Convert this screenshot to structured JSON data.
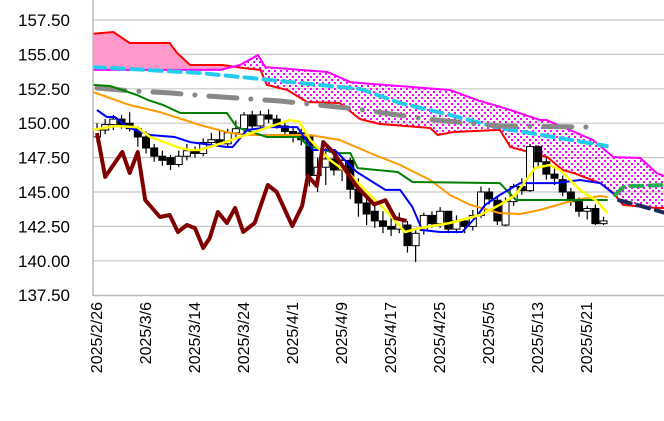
{
  "chart_data": {
    "type": "candlestick-ichimoku",
    "title": "",
    "ylim": [
      137.5,
      157.5
    ],
    "xlim": [
      -0.5,
      69.4
    ],
    "grid": true,
    "y_ticks": [
      "137.50",
      "140.00",
      "142.50",
      "145.00",
      "147.50",
      "150.00",
      "152.50",
      "155.00",
      "157.50"
    ],
    "y_tick_values": [
      137.5,
      140,
      142.5,
      145,
      147.5,
      150,
      152.5,
      155,
      157.5
    ],
    "x_ticks": [
      {
        "index": 0,
        "label": "2025/2/26"
      },
      {
        "index": 6,
        "label": "2025/3/6"
      },
      {
        "index": 12,
        "label": "2025/3/14"
      },
      {
        "index": 18,
        "label": "2025/3/24"
      },
      {
        "index": 24,
        "label": "2025/4/1"
      },
      {
        "index": 30,
        "label": "2025/4/9"
      },
      {
        "index": 36,
        "label": "2025/4/17"
      },
      {
        "index": 42,
        "label": "2025/4/25"
      },
      {
        "index": 48,
        "label": "2025/5/5"
      },
      {
        "index": 54,
        "label": "2025/5/13"
      },
      {
        "index": 60,
        "label": "2025/5/21"
      }
    ],
    "candles_ohlc": [
      [
        149.0,
        150.0,
        148.6,
        149.5
      ],
      [
        149.5,
        150.3,
        149.2,
        149.9
      ],
      [
        149.9,
        150.6,
        149.5,
        150.3
      ],
      [
        150.3,
        150.6,
        149.6,
        149.8
      ],
      [
        150.0,
        150.8,
        149.4,
        149.6
      ],
      [
        149.6,
        149.8,
        148.3,
        149.0
      ],
      [
        149.0,
        149.4,
        147.8,
        148.2
      ],
      [
        148.2,
        148.5,
        147.2,
        147.6
      ],
      [
        147.6,
        148.0,
        146.9,
        147.3
      ],
      [
        147.5,
        147.7,
        146.6,
        147.0
      ],
      [
        147.0,
        148.0,
        146.8,
        147.6
      ],
      [
        147.6,
        148.5,
        147.3,
        148.0
      ],
      [
        148.0,
        148.3,
        147.5,
        147.8
      ],
      [
        147.8,
        148.9,
        147.6,
        148.6
      ],
      [
        148.6,
        149.3,
        148.2,
        148.8
      ],
      [
        148.8,
        149.5,
        148.3,
        148.5
      ],
      [
        148.5,
        149.6,
        148.2,
        149.3
      ],
      [
        149.3,
        150.2,
        149.0,
        149.6
      ],
      [
        149.6,
        150.8,
        149.3,
        150.6
      ],
      [
        150.6,
        150.9,
        149.5,
        149.8
      ],
      [
        149.8,
        150.9,
        149.6,
        150.6
      ],
      [
        150.6,
        151.0,
        150.0,
        150.3
      ],
      [
        150.3,
        150.6,
        149.6,
        149.8
      ],
      [
        149.8,
        150.2,
        149.0,
        149.4
      ],
      [
        149.4,
        149.8,
        148.6,
        149.0
      ],
      [
        149.3,
        149.6,
        148.4,
        148.8
      ],
      [
        149.0,
        149.2,
        145.4,
        146.2
      ],
      [
        146.2,
        147.5,
        145.0,
        146.8
      ],
      [
        146.8,
        148.2,
        145.5,
        147.4
      ],
      [
        147.4,
        147.8,
        146.2,
        146.6
      ],
      [
        146.6,
        147.6,
        145.8,
        147.3
      ],
      [
        147.3,
        147.5,
        144.5,
        145.2
      ],
      [
        145.2,
        146.0,
        143.2,
        144.2
      ],
      [
        144.2,
        144.6,
        142.6,
        143.4
      ],
      [
        143.6,
        144.2,
        142.4,
        142.9
      ],
      [
        142.9,
        143.6,
        142.0,
        142.5
      ],
      [
        142.5,
        143.2,
        141.8,
        142.3
      ],
      [
        142.3,
        143.5,
        142.0,
        143.0
      ],
      [
        142.6,
        142.9,
        140.6,
        141.1
      ],
      [
        141.1,
        142.3,
        139.9,
        142.0
      ],
      [
        142.2,
        143.5,
        141.9,
        143.3
      ],
      [
        143.3,
        143.6,
        142.4,
        142.7
      ],
      [
        142.7,
        143.9,
        142.4,
        143.6
      ],
      [
        143.6,
        143.6,
        142.0,
        142.3
      ],
      [
        142.3,
        143.3,
        142.0,
        142.9
      ],
      [
        142.9,
        143.0,
        142.0,
        142.5
      ],
      [
        142.5,
        143.7,
        142.2,
        143.3
      ],
      [
        143.3,
        145.4,
        143.1,
        145.0
      ],
      [
        145.0,
        145.3,
        144.1,
        144.5
      ],
      [
        144.4,
        144.6,
        142.6,
        142.9
      ],
      [
        142.6,
        144.6,
        142.5,
        144.3
      ],
      [
        144.3,
        145.6,
        144.0,
        145.4
      ],
      [
        145.4,
        146.0,
        144.8,
        145.1
      ],
      [
        145.1,
        148.5,
        145.0,
        148.3
      ],
      [
        148.3,
        148.4,
        146.7,
        147.2
      ],
      [
        147.2,
        147.5,
        145.9,
        146.3
      ],
      [
        146.3,
        146.8,
        145.5,
        146.0
      ],
      [
        145.9,
        146.2,
        144.7,
        145.0
      ],
      [
        145.0,
        145.3,
        144.0,
        144.3
      ],
      [
        144.3,
        144.6,
        143.2,
        143.6
      ],
      [
        143.6,
        144.0,
        143.0,
        143.8
      ],
      [
        143.8,
        144.1,
        142.6,
        142.7
      ],
      [
        142.7,
        143.2,
        142.6,
        142.9
      ]
    ],
    "cloud": {
      "span_a_color": "#ff0000",
      "span_b_color": "#ff00ff",
      "bull_fill": "#ff99cc",
      "bear_dots": "#ff00ff",
      "span_a": [
        [
          -0.5,
          156.5
        ],
        [
          2.0,
          156.63
        ],
        [
          4.0,
          155.83
        ],
        [
          8.9,
          155.83
        ],
        [
          9.8,
          155.1
        ],
        [
          11.4,
          154.23
        ],
        [
          15.4,
          154.23
        ],
        [
          17.9,
          154.01
        ],
        [
          20.0,
          153.87
        ],
        [
          20.8,
          152.78
        ],
        [
          23.3,
          152.41
        ],
        [
          25.7,
          151.54
        ],
        [
          29.7,
          151.47
        ],
        [
          32.2,
          150.3
        ],
        [
          34.6,
          149.94
        ],
        [
          36.2,
          149.87
        ],
        [
          40.8,
          149.65
        ],
        [
          41.7,
          149.14
        ],
        [
          43.6,
          149.36
        ],
        [
          49.3,
          149.51
        ],
        [
          50.6,
          148.27
        ],
        [
          55.1,
          147.54
        ],
        [
          57.0,
          146.6
        ],
        [
          58.3,
          146.38
        ],
        [
          61.6,
          145.65
        ],
        [
          63.2,
          144.93
        ],
        [
          64.4,
          144.06
        ],
        [
          68.5,
          143.84
        ],
        [
          69.4,
          143.84
        ]
      ],
      "span_b": [
        [
          -0.5,
          153.87
        ],
        [
          15.1,
          153.87
        ],
        [
          17.5,
          154.23
        ],
        [
          19.7,
          154.96
        ],
        [
          20.6,
          154.08
        ],
        [
          28.2,
          153.72
        ],
        [
          31.0,
          152.99
        ],
        [
          32.2,
          152.92
        ],
        [
          43.2,
          152.41
        ],
        [
          46.5,
          151.69
        ],
        [
          50.6,
          150.96
        ],
        [
          54.2,
          150.23
        ],
        [
          55.0,
          150.23
        ],
        [
          60.7,
          148.78
        ],
        [
          63.2,
          147.54
        ],
        [
          66.5,
          147.47
        ],
        [
          68.5,
          146.38
        ],
        [
          69.4,
          146.16
        ]
      ]
    },
    "series": [
      {
        "name": "cyan-dashed",
        "color": "#22ccee",
        "style": "dash",
        "width": 4,
        "points": [
          [
            -0.5,
            154.08
          ],
          [
            4.0,
            153.94
          ],
          [
            12.6,
            153.65
          ],
          [
            18.7,
            153.29
          ],
          [
            24.8,
            152.92
          ],
          [
            32.2,
            152.49
          ],
          [
            37.1,
            151.47
          ],
          [
            43.2,
            150.6
          ],
          [
            49.3,
            149.65
          ],
          [
            56.7,
            148.92
          ],
          [
            62.4,
            148.34
          ]
        ]
      },
      {
        "name": "gray-dashdot",
        "color": "#888888",
        "style": "dashdot",
        "width": 4,
        "points": [
          [
            0,
            152.56
          ],
          [
            4.4,
            152.34
          ],
          [
            8.9,
            152.2
          ],
          [
            13.5,
            151.98
          ],
          [
            22.4,
            151.61
          ],
          [
            31.8,
            151.03
          ],
          [
            40.4,
            150.3
          ],
          [
            49.3,
            149.8
          ],
          [
            61.2,
            149.72
          ]
        ]
      },
      {
        "name": "orange",
        "color": "#ff9900",
        "style": "solid",
        "width": 2,
        "points": [
          [
            -0.5,
            152.27
          ],
          [
            4.0,
            151.32
          ],
          [
            7.7,
            150.81
          ],
          [
            12.6,
            149.87
          ],
          [
            16.3,
            149.29
          ],
          [
            18.7,
            149.14
          ],
          [
            26.1,
            149.14
          ],
          [
            29.7,
            148.78
          ],
          [
            34.0,
            147.69
          ],
          [
            37.1,
            146.96
          ],
          [
            40.8,
            145.87
          ],
          [
            43.2,
            144.78
          ],
          [
            45.7,
            144.06
          ],
          [
            49.3,
            143.47
          ],
          [
            51.8,
            143.4
          ],
          [
            54.2,
            143.69
          ],
          [
            58.5,
            144.42
          ],
          [
            61.6,
            144.71
          ],
          [
            62.5,
            144.64
          ]
        ]
      },
      {
        "name": "green-kijun",
        "color": "#008000",
        "style": "solid",
        "width": 2,
        "points": [
          [
            -0.5,
            152.78
          ],
          [
            1.6,
            152.7
          ],
          [
            4.9,
            152.05
          ],
          [
            6.2,
            151.69
          ],
          [
            8.1,
            151.32
          ],
          [
            10.2,
            150.74
          ],
          [
            15.9,
            150.74
          ],
          [
            17.1,
            149.72
          ],
          [
            20.8,
            149.0
          ],
          [
            24.8,
            149.0
          ],
          [
            25.7,
            148.4
          ],
          [
            29.1,
            147.83
          ],
          [
            31.0,
            147.83
          ],
          [
            31.9,
            146.74
          ],
          [
            36.8,
            146.45
          ],
          [
            38.6,
            145.73
          ],
          [
            49.3,
            145.65
          ],
          [
            51.3,
            144.42
          ],
          [
            62.5,
            144.42
          ]
        ]
      },
      {
        "name": "blue-tenkan",
        "color": "#0000ff",
        "style": "solid",
        "width": 2,
        "points": [
          [
            0,
            150.96
          ],
          [
            1.2,
            150.45
          ],
          [
            2.2,
            150.45
          ],
          [
            3.7,
            149.72
          ],
          [
            6.5,
            149.14
          ],
          [
            9.5,
            149.0
          ],
          [
            11.4,
            148.63
          ],
          [
            15.9,
            148.27
          ],
          [
            16.6,
            148.27
          ],
          [
            18.4,
            149.51
          ],
          [
            21.2,
            149.72
          ],
          [
            24.5,
            149.72
          ],
          [
            26.4,
            148.05
          ],
          [
            29.1,
            148.05
          ],
          [
            31.8,
            146.45
          ],
          [
            35.3,
            145.15
          ],
          [
            37.1,
            145.15
          ],
          [
            38.6,
            143.91
          ],
          [
            39.8,
            142.24
          ],
          [
            42.0,
            142.09
          ],
          [
            44.7,
            142.09
          ],
          [
            46.6,
            143.33
          ],
          [
            47.5,
            144.06
          ],
          [
            49.3,
            144.78
          ],
          [
            51.8,
            145.65
          ],
          [
            56.1,
            145.65
          ],
          [
            59.1,
            145.87
          ],
          [
            61.6,
            145.65
          ],
          [
            63.4,
            144.78
          ]
        ]
      },
      {
        "name": "yellow",
        "color": "#ffff00",
        "style": "solid",
        "width": 2.5,
        "points": [
          [
            -0.5,
            149.51
          ],
          [
            2.2,
            149.8
          ],
          [
            4.9,
            149.72
          ],
          [
            6.5,
            149.0
          ],
          [
            10.2,
            148.2
          ],
          [
            11.4,
            148.05
          ],
          [
            12.6,
            148.05
          ],
          [
            15.7,
            148.63
          ],
          [
            20.0,
            149.51
          ],
          [
            23.6,
            150.23
          ],
          [
            24.8,
            150.09
          ],
          [
            26.1,
            148.78
          ],
          [
            28.5,
            147.33
          ],
          [
            31.0,
            146.24
          ],
          [
            33.4,
            144.78
          ],
          [
            35.3,
            143.69
          ],
          [
            37.7,
            142.09
          ],
          [
            39.5,
            142.38
          ],
          [
            43.2,
            142.75
          ],
          [
            46.9,
            143.33
          ],
          [
            49.3,
            144.06
          ],
          [
            51.2,
            144.78
          ],
          [
            53.6,
            146.74
          ],
          [
            55.4,
            146.96
          ],
          [
            56.7,
            146.6
          ],
          [
            59.1,
            145.15
          ],
          [
            61.0,
            144.42
          ],
          [
            62.5,
            143.47
          ]
        ]
      },
      {
        "name": "chikou",
        "color": "#800000",
        "style": "solid",
        "width": 4,
        "points": [
          [
            0,
            149.29
          ],
          [
            1.0,
            146.1
          ],
          [
            3.1,
            147.91
          ],
          [
            4.0,
            146.38
          ],
          [
            5.0,
            147.91
          ],
          [
            5.9,
            144.42
          ],
          [
            7.7,
            143.18
          ],
          [
            8.9,
            143.33
          ],
          [
            9.9,
            142.09
          ],
          [
            11.0,
            142.6
          ],
          [
            12.0,
            142.38
          ],
          [
            13.0,
            140.93
          ],
          [
            13.8,
            141.65
          ],
          [
            14.8,
            143.55
          ],
          [
            15.9,
            142.75
          ],
          [
            16.9,
            143.84
          ],
          [
            17.9,
            142.09
          ],
          [
            19.3,
            142.75
          ],
          [
            20.9,
            145.51
          ],
          [
            22.0,
            145.0
          ],
          [
            23.9,
            142.53
          ],
          [
            25.1,
            143.98
          ],
          [
            25.8,
            146.17
          ],
          [
            26.9,
            145.44
          ],
          [
            27.7,
            148.63
          ],
          [
            28.9,
            147.91
          ],
          [
            30.4,
            146.6
          ],
          [
            31.8,
            145.4
          ],
          [
            33.9,
            144.1
          ],
          [
            35.3,
            144.4
          ],
          [
            36.5,
            143.1
          ],
          [
            37.9,
            142.9
          ]
        ]
      },
      {
        "name": "green-future-dashed",
        "color": "#22aa55",
        "style": "dash",
        "width": 4,
        "points": [
          [
            63.4,
            144.78
          ],
          [
            64.6,
            145.44
          ],
          [
            66.5,
            145.44
          ],
          [
            69.4,
            145.51
          ]
        ]
      },
      {
        "name": "navy-future-dashed",
        "color": "#1a2a5a",
        "style": "dash",
        "width": 4,
        "points": [
          [
            63.9,
            144.4
          ],
          [
            66.5,
            144.0
          ],
          [
            69.4,
            143.5
          ]
        ]
      }
    ]
  }
}
